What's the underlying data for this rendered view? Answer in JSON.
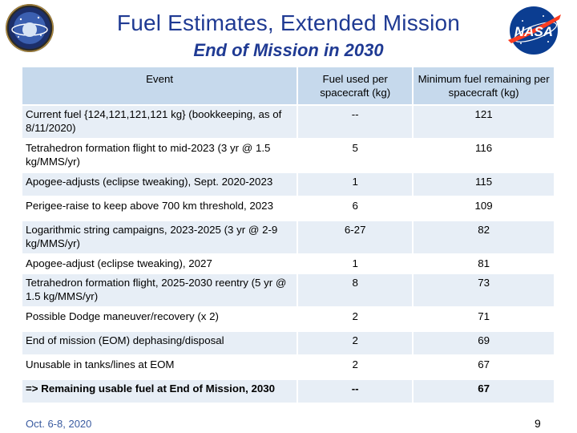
{
  "header": {
    "title": "Fuel Estimates, Extended Mission",
    "subtitle": "End of Mission in 2030"
  },
  "logos": {
    "left_icon": "mms-mission-patch",
    "right_icon": "nasa-meatball-logo",
    "nasa_text": "NASA"
  },
  "table": {
    "headers": [
      "Event",
      "Fuel used per spacecraft (kg)",
      "Minimum fuel remaining per spacecraft (kg)"
    ],
    "rows": [
      {
        "event": "Current fuel {124,121,121,121 kg} (bookkeeping, as of 8/11/2020)",
        "used": "--",
        "remaining": "121",
        "height": 40
      },
      {
        "event": "Tetrahedron formation flight to mid-2023 (3 yr @ 1.5 kg/MMS/yr)",
        "used": "5",
        "remaining": "116",
        "height": 40
      },
      {
        "event": "Apogee-adjusts (eclipse tweaking), Sept. 2020-2023",
        "used": "1",
        "remaining": "115",
        "height": 28
      },
      {
        "event": "Perigee-raise to keep above 700 km threshold, 2023",
        "used": "6",
        "remaining": "109",
        "height": 28
      },
      {
        "event": "Logarithmic string campaigns, 2023-2025 (3 yr @ 2-9 kg/MMS/yr)",
        "used": "6-27",
        "remaining": "82",
        "height": 40
      },
      {
        "event": "Apogee-adjust (eclipse tweaking), 2027",
        "used": "1",
        "remaining": "81",
        "height": 22
      },
      {
        "event": "Tetrahedron formation flight, 2025-2030 reentry (5 yr @ 1.5 kg/MMS/yr)",
        "used": "8",
        "remaining": "73",
        "height": 40
      },
      {
        "event": "Possible Dodge maneuver/recovery (x 2)",
        "used": "2",
        "remaining": "71",
        "height": 28
      },
      {
        "event": "End of mission (EOM) dephasing/disposal",
        "used": "2",
        "remaining": "69",
        "height": 28
      },
      {
        "event": "Unusable in tanks/lines at EOM",
        "used": "2",
        "remaining": "67",
        "height": 28
      },
      {
        "event": "=> Remaining usable fuel at End of Mission, 2030",
        "used": "--",
        "remaining": "67",
        "height": 28
      }
    ]
  },
  "footer": {
    "date": "Oct. 6-8, 2020",
    "page": "9"
  }
}
